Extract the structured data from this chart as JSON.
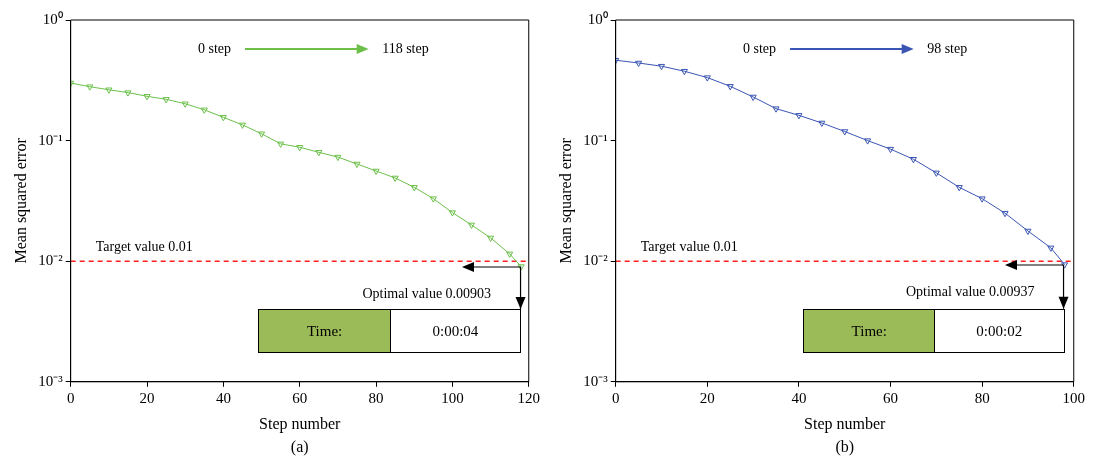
{
  "chart_data": [
    {
      "type": "line",
      "xlabel": "Step number",
      "ylabel": "Mean squared error",
      "marker": "triangle",
      "log": "y",
      "x": [
        0,
        5,
        10,
        15,
        20,
        25,
        30,
        35,
        40,
        45,
        50,
        55,
        60,
        65,
        70,
        75,
        80,
        85,
        90,
        95,
        100,
        105,
        110,
        115,
        118
      ],
      "series": [
        {
          "color": "#6cc04a",
          "values": [
            0.3,
            0.28,
            0.264,
            0.25,
            0.233,
            0.22,
            0.202,
            0.18,
            0.156,
            0.135,
            0.114,
            0.094,
            0.088,
            0.08,
            0.073,
            0.064,
            0.056,
            0.049,
            0.041,
            0.033,
            0.0253,
            0.02,
            0.0156,
            0.0115,
            0.00903
          ]
        }
      ],
      "xlim": [
        0,
        120
      ],
      "xticks": [
        0,
        20,
        40,
        60,
        80,
        100,
        120
      ],
      "ylim": [
        0.001,
        1
      ],
      "yticks": [
        {
          "value": 0.001,
          "label": "10⁻³"
        },
        {
          "value": 0.01,
          "label": "10⁻²"
        },
        {
          "value": 0.1,
          "label": "10⁻¹"
        },
        {
          "value": 1,
          "label": "10⁰"
        }
      ],
      "ref_lines": [
        {
          "axis": "y",
          "value": 0.01,
          "label": "Target value 0.01",
          "color": "#ff2020",
          "line_style": "dashed"
        }
      ],
      "annotations": [
        "0 step",
        "118 step",
        "Time:",
        "0:00:04",
        "(a)",
        {
          "text": "Optimal value 0.00903",
          "x": 118,
          "y": 0.00903
        }
      ]
    },
    {
      "type": "line",
      "xlabel": "Step number",
      "ylabel": "Mean squared error",
      "marker": "triangle",
      "log": "y",
      "x": [
        0,
        5,
        10,
        15,
        20,
        25,
        30,
        35,
        40,
        45,
        50,
        55,
        60,
        65,
        70,
        75,
        80,
        85,
        90,
        95,
        98
      ],
      "series": [
        {
          "color": "#3a55b4",
          "values": [
            0.464,
            0.44,
            0.414,
            0.376,
            0.333,
            0.282,
            0.23,
            0.184,
            0.162,
            0.14,
            0.119,
            0.1,
            0.085,
            0.07,
            0.054,
            0.041,
            0.033,
            0.025,
            0.0178,
            0.0129,
            0.00937
          ]
        }
      ],
      "xlim": [
        0,
        100
      ],
      "xticks": [
        0,
        20,
        40,
        60,
        80,
        100
      ],
      "ylim": [
        0.001,
        1
      ],
      "yticks": [
        {
          "value": 0.001,
          "label": "10⁻³"
        },
        {
          "value": 0.01,
          "label": "10⁻²"
        },
        {
          "value": 0.1,
          "label": "10⁻¹"
        },
        {
          "value": 1,
          "label": "10⁰"
        }
      ],
      "ref_lines": [
        {
          "axis": "y",
          "value": 0.01,
          "label": "Target value 0.01",
          "color": "#ff2020",
          "line_style": "dashed"
        }
      ],
      "annotations": [
        "0 step",
        "98 step",
        "Time:",
        "0:00:02",
        "(b)",
        {
          "text": "Optimal value 0.00937",
          "x": 98,
          "y": 0.00937
        }
      ]
    }
  ]
}
